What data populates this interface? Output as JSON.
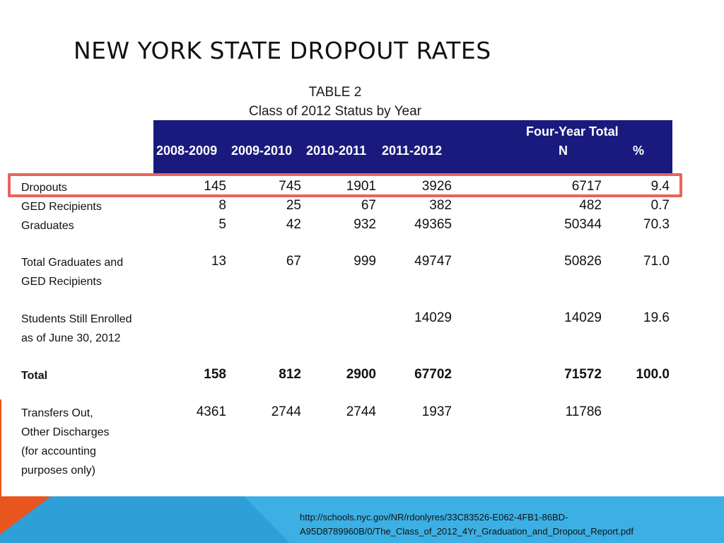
{
  "slide": {
    "title": "New York State Dropout Rates"
  },
  "table": {
    "caption_line1": "TABLE 2",
    "caption_line2": "Class of 2012 Status by Year",
    "header": {
      "years": [
        "2008-2009",
        "2009-2010",
        "2010-2011",
        "2011-2012"
      ],
      "four_year_total": "Four-Year Total",
      "n": "N",
      "pct": "%"
    },
    "rows": [
      {
        "label_lines": [
          "Dropouts"
        ],
        "values": [
          "145",
          "745",
          "1901",
          "3926"
        ],
        "n": "6717",
        "pct": "9.4",
        "bold": false,
        "highlighted": true
      },
      {
        "label_lines": [
          "GED Recipients"
        ],
        "values": [
          "8",
          "25",
          "67",
          "382"
        ],
        "n": "482",
        "pct": "0.7",
        "bold": false,
        "highlighted": false
      },
      {
        "label_lines": [
          "Graduates"
        ],
        "values": [
          "5",
          "42",
          "932",
          "49365"
        ],
        "n": "50344",
        "pct": "70.3",
        "bold": false,
        "highlighted": false
      },
      {
        "label_lines": [
          "Total Graduates and",
          "GED Recipients"
        ],
        "values": [
          "13",
          "67",
          "999",
          "49747"
        ],
        "n": "50826",
        "pct": "71.0",
        "bold": false,
        "highlighted": false
      },
      {
        "label_lines": [
          "Students Still Enrolled",
          "as of June 30, 2012"
        ],
        "values": [
          "",
          "",
          "",
          "14029"
        ],
        "n": "14029",
        "pct": "19.6",
        "bold": false,
        "highlighted": false
      },
      {
        "label_lines": [
          "Total"
        ],
        "values": [
          "158",
          "812",
          "2900",
          "67702"
        ],
        "n": "71572",
        "pct": "100.0",
        "bold": true,
        "highlighted": false
      },
      {
        "label_lines": [
          "Transfers Out,",
          "Other Discharges",
          "(for accounting",
          "purposes only)"
        ],
        "values": [
          "4361",
          "2744",
          "2744",
          "1937"
        ],
        "n": "11786",
        "pct": "",
        "bold": false,
        "highlighted": false
      }
    ]
  },
  "source": {
    "line1": "http://schools.nyc.gov/NR/rdonlyres/33C83526-E062-4FB1-86BD-",
    "line2": "A95D8789960B/0/The_Class_of_2012_4Yr_Graduation_and_Dropout_Report.pdf"
  },
  "colors": {
    "header_band": "#1a1a7e",
    "highlight_box": "#e8655a",
    "footer_orange": "#e8551f",
    "footer_blue_dark": "#2f9fd8",
    "footer_blue": "#3cb0e4"
  }
}
